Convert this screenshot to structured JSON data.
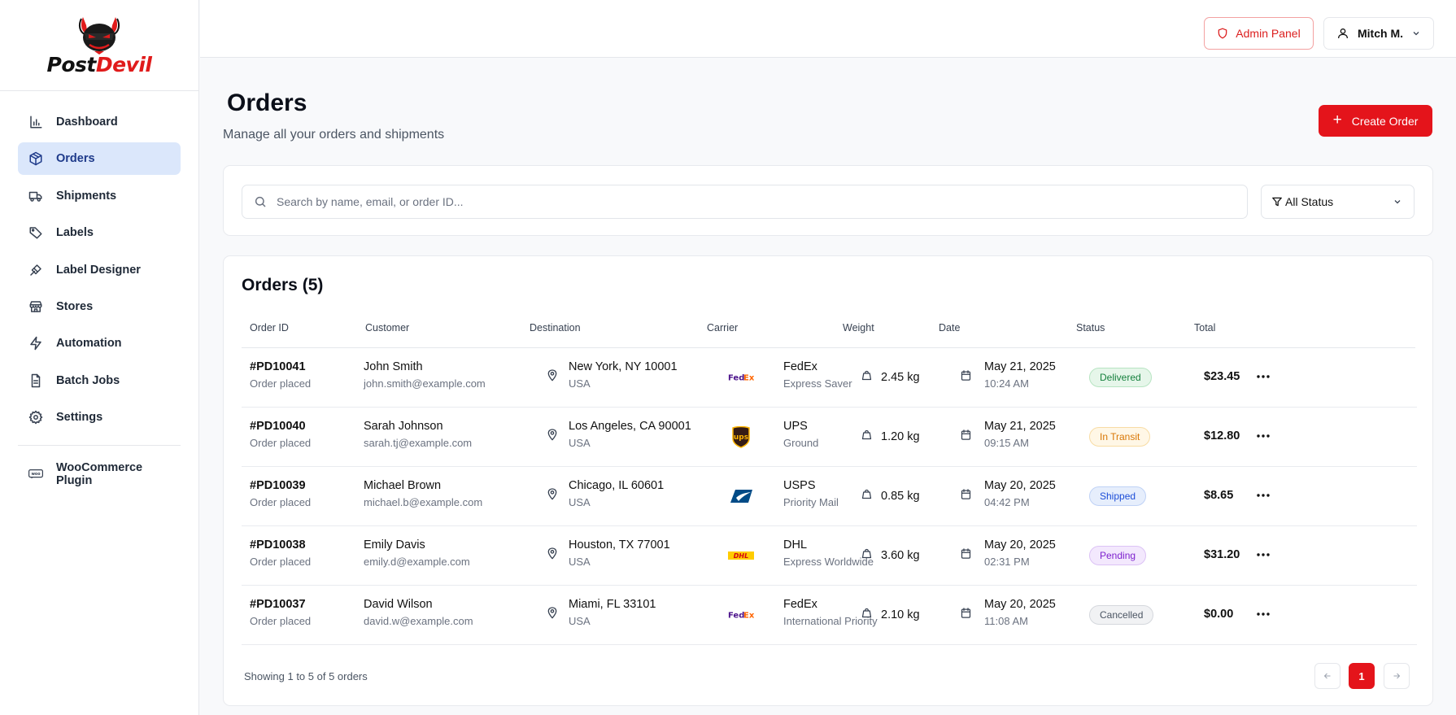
{
  "brand": {
    "part1": "Post",
    "part2": "Devil",
    "accent": "#e01b1b"
  },
  "sidebar": {
    "items": [
      {
        "label": "Dashboard",
        "icon": "bar-chart-icon"
      },
      {
        "label": "Orders",
        "icon": "package-icon",
        "active": true
      },
      {
        "label": "Shipments",
        "icon": "truck-icon"
      },
      {
        "label": "Labels",
        "icon": "tag-icon"
      },
      {
        "label": "Label Designer",
        "icon": "brush-icon"
      },
      {
        "label": "Stores",
        "icon": "store-icon"
      },
      {
        "label": "Automation",
        "icon": "lightning-icon"
      },
      {
        "label": "Batch Jobs",
        "icon": "file-icon"
      },
      {
        "label": "Settings",
        "icon": "gear-icon"
      }
    ],
    "plugin": {
      "label": "WooCommerce Plugin",
      "icon": "woo-icon"
    }
  },
  "topbar": {
    "admin_label": "Admin Panel",
    "user_name": "Mitch M."
  },
  "page": {
    "title": "Orders",
    "subtitle": "Manage all your orders and shipments",
    "create_label": "Create Order"
  },
  "search": {
    "placeholder": "Search by name, email, or order ID...",
    "value": "",
    "status_filter": "All Status"
  },
  "orders": {
    "title": "Orders (5)",
    "columns": [
      "Order ID",
      "Customer",
      "Destination",
      "Carrier",
      "Weight",
      "Date",
      "Status",
      "Total"
    ],
    "rows": [
      {
        "id": "#PD10041",
        "state": "Order placed",
        "customer": "John Smith",
        "email": "john.smith@example.com",
        "city": "New York, NY 10001",
        "country": "USA",
        "carrier": "FedEx",
        "service": "Express Saver",
        "carrier_logo": "fedex",
        "weight": "2.45 kg",
        "date": "May 21, 2025",
        "time": "10:24 AM",
        "status": "Delivered",
        "status_class": "b-delivered",
        "total": "$23.45"
      },
      {
        "id": "#PD10040",
        "state": "Order placed",
        "customer": "Sarah Johnson",
        "email": "sarah.tj@example.com",
        "city": "Los Angeles, CA 90001",
        "country": "USA",
        "carrier": "UPS",
        "service": "Ground",
        "carrier_logo": "ups",
        "weight": "1.20 kg",
        "date": "May 21, 2025",
        "time": "09:15 AM",
        "status": "In Transit",
        "status_class": "b-transit",
        "total": "$12.80"
      },
      {
        "id": "#PD10039",
        "state": "Order placed",
        "customer": "Michael Brown",
        "email": "michael.b@example.com",
        "city": "Chicago, IL 60601",
        "country": "USA",
        "carrier": "USPS",
        "service": "Priority Mail",
        "carrier_logo": "usps",
        "weight": "0.85 kg",
        "date": "May 20, 2025",
        "time": "04:42 PM",
        "status": "Shipped",
        "status_class": "b-shipped",
        "total": "$8.65"
      },
      {
        "id": "#PD10038",
        "state": "Order placed",
        "customer": "Emily Davis",
        "email": "emily.d@example.com",
        "city": "Houston, TX 77001",
        "country": "USA",
        "carrier": "DHL",
        "service": "Express Worldwide",
        "carrier_logo": "dhl",
        "weight": "3.60 kg",
        "date": "May 20, 2025",
        "time": "02:31 PM",
        "status": "Pending",
        "status_class": "b-pending",
        "total": "$31.20"
      },
      {
        "id": "#PD10037",
        "state": "Order placed",
        "customer": "David Wilson",
        "email": "david.w@example.com",
        "city": "Miami, FL 33101",
        "country": "USA",
        "carrier": "FedEx",
        "service": "International Priority",
        "carrier_logo": "fedex",
        "weight": "2.10 kg",
        "date": "May 20, 2025",
        "time": "11:08 AM",
        "status": "Cancelled",
        "status_class": "b-cancelled",
        "total": "$0.00"
      }
    ],
    "showing": "Showing 1 to 5 of 5 orders",
    "current_page": "1"
  }
}
